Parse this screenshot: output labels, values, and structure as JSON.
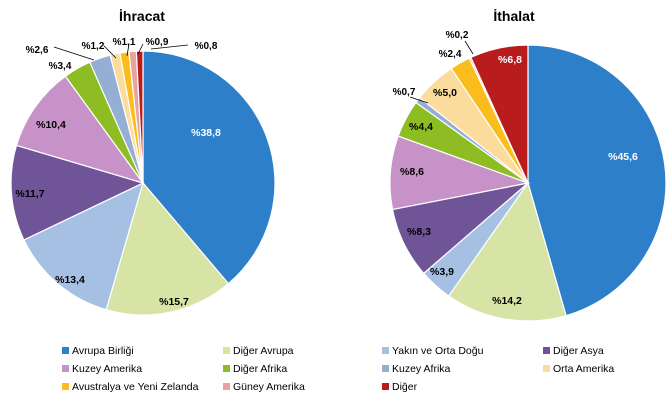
{
  "chart_data": [
    {
      "type": "pie",
      "title": "İhracat",
      "slices": [
        {
          "name": "Avrupa Birliği",
          "value": 38.8,
          "label": "%38,8"
        },
        {
          "name": "Diğer Avrupa",
          "value": 15.7,
          "label": "%15,7"
        },
        {
          "name": "Yakın ve Orta Doğu",
          "value": 13.4,
          "label": "%13,4"
        },
        {
          "name": "Diğer Asya",
          "value": 11.7,
          "label": "%11,7"
        },
        {
          "name": "Kuzey Amerika",
          "value": 10.4,
          "label": "%10,4"
        },
        {
          "name": "Diğer Afrika",
          "value": 3.4,
          "label": "%3,4"
        },
        {
          "name": "Kuzey Afrika",
          "value": 2.6,
          "label": "%2,6"
        },
        {
          "name": "Orta Amerika",
          "value": 1.2,
          "label": "%1,2"
        },
        {
          "name": "Avustralya ve Yeni Zelanda",
          "value": 1.1,
          "label": "%1,1"
        },
        {
          "name": "Güney Amerika",
          "value": 0.9,
          "label": "%0,9"
        },
        {
          "name": "Diğer",
          "value": 0.8,
          "label": "%0,8"
        }
      ]
    },
    {
      "type": "pie",
      "title": "İthalat",
      "slices": [
        {
          "name": "Avrupa Birliği",
          "value": 45.6,
          "label": "%45,6"
        },
        {
          "name": "Diğer Avrupa",
          "value": 14.2,
          "label": "%14,2"
        },
        {
          "name": "Yakın ve Orta Doğu",
          "value": 3.9,
          "label": "%3,9"
        },
        {
          "name": "Diğer Asya",
          "value": 8.3,
          "label": "%8,3"
        },
        {
          "name": "Kuzey Amerika",
          "value": 8.6,
          "label": "%8,6"
        },
        {
          "name": "Diğer Afrika",
          "value": 4.4,
          "label": "%4,4"
        },
        {
          "name": "Kuzey Afrika",
          "value": 0.7,
          "label": "%0,7"
        },
        {
          "name": "Orta Amerika",
          "value": 5.0,
          "label": "%5,0"
        },
        {
          "name": "Avustralya ve Yeni Zelanda",
          "value": 2.4,
          "label": "%2,4"
        },
        {
          "name": "Güney Amerika",
          "value": 0.2,
          "label": "%0,2"
        },
        {
          "name": "Diğer",
          "value": 6.8,
          "label": "%6,8"
        }
      ]
    }
  ],
  "legend": [
    {
      "name": "Avrupa Birliği",
      "color": "#2e7fc9"
    },
    {
      "name": "Diğer Avrupa",
      "color": "#d7e4a6"
    },
    {
      "name": "Yakın ve Orta Doğu",
      "color": "#a6c0e3"
    },
    {
      "name": "Diğer Asya",
      "color": "#6f5598"
    },
    {
      "name": "Kuzey Amerika",
      "color": "#c792c7"
    },
    {
      "name": "Diğer Afrika",
      "color": "#8dbd23"
    },
    {
      "name": "Kuzey Afrika",
      "color": "#95aed4"
    },
    {
      "name": "Orta Amerika",
      "color": "#fbdc9c"
    },
    {
      "name": "Avustralya ve Yeni Zelanda",
      "color": "#fbbc1e"
    },
    {
      "name": "Güney Amerika",
      "color": "#e8a3a0"
    },
    {
      "name": "Diğer",
      "color": "#b91c1c"
    }
  ]
}
